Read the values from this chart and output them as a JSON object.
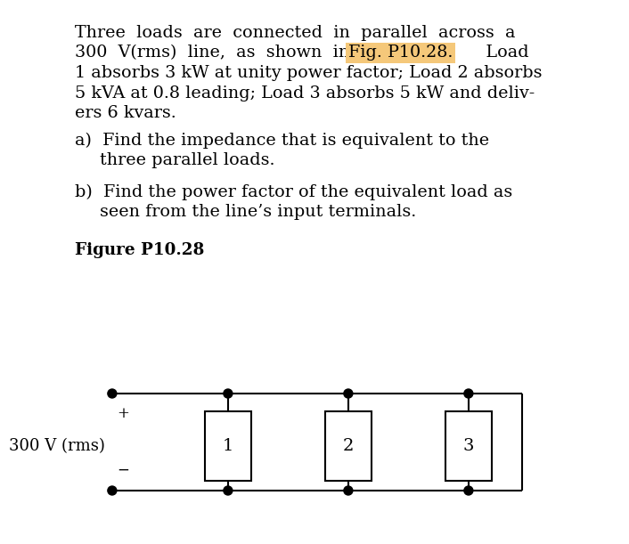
{
  "background_color": "#ffffff",
  "fig_ref_highlight": "#f5c87a",
  "figure_label": "Figure P10.28",
  "voltage_label": "300 V (rms)",
  "load_labels": [
    "1",
    "2",
    "3"
  ],
  "plus_sign": "+",
  "minus_sign": "−",
  "dot_color": "#000000",
  "line_color": "#000000",
  "box_color": "#000000",
  "text_color": "#000000",
  "font_size_body": 13.8,
  "font_size_fig_label": 13.2,
  "font_size_circuit": 13.0
}
